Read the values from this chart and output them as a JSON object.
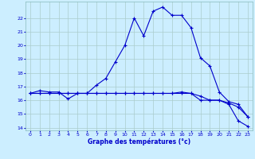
{
  "xlabel": "Graphe des températures (°c)",
  "background_color": "#cceeff",
  "line_color": "#0000cc",
  "grid_color": "#aacccc",
  "ylim": [
    13.8,
    23.2
  ],
  "xlim": [
    -0.5,
    23.5
  ],
  "yticks": [
    14,
    15,
    16,
    17,
    18,
    19,
    20,
    21,
    22
  ],
  "xticks": [
    0,
    1,
    2,
    3,
    4,
    5,
    6,
    7,
    8,
    9,
    10,
    11,
    12,
    13,
    14,
    15,
    16,
    17,
    18,
    19,
    20,
    21,
    22,
    23
  ],
  "line1": {
    "x": [
      0,
      1,
      2,
      3,
      4,
      5,
      6,
      7,
      8,
      9,
      10,
      11,
      12,
      13,
      14,
      15,
      16,
      17,
      18,
      19,
      20,
      21,
      22,
      23
    ],
    "y": [
      16.5,
      16.7,
      16.6,
      16.6,
      16.1,
      16.5,
      16.5,
      17.1,
      17.6,
      18.8,
      20.0,
      22.0,
      20.7,
      22.5,
      22.8,
      22.2,
      22.2,
      21.3,
      19.1,
      18.5,
      16.6,
      15.9,
      15.7,
      14.8
    ]
  },
  "line2": {
    "x": [
      0,
      1,
      2,
      3,
      4,
      5,
      6,
      7,
      8,
      9,
      10,
      11,
      12,
      13,
      14,
      15,
      16,
      17,
      18,
      19,
      20,
      21,
      22,
      23
    ],
    "y": [
      16.5,
      16.5,
      16.5,
      16.5,
      16.5,
      16.5,
      16.5,
      16.5,
      16.5,
      16.5,
      16.5,
      16.5,
      16.5,
      16.5,
      16.5,
      16.5,
      16.5,
      16.5,
      16.0,
      16.0,
      16.0,
      15.7,
      14.5,
      14.1
    ]
  },
  "line3": {
    "x": [
      0,
      1,
      2,
      3,
      4,
      5,
      6,
      7,
      8,
      9,
      10,
      11,
      12,
      13,
      14,
      15,
      16,
      17,
      18,
      19,
      20,
      21,
      22,
      23
    ],
    "y": [
      16.5,
      16.5,
      16.5,
      16.5,
      16.5,
      16.5,
      16.5,
      16.5,
      16.5,
      16.5,
      16.5,
      16.5,
      16.5,
      16.5,
      16.5,
      16.5,
      16.6,
      16.5,
      16.3,
      16.0,
      16.0,
      15.8,
      15.5,
      14.8
    ]
  }
}
